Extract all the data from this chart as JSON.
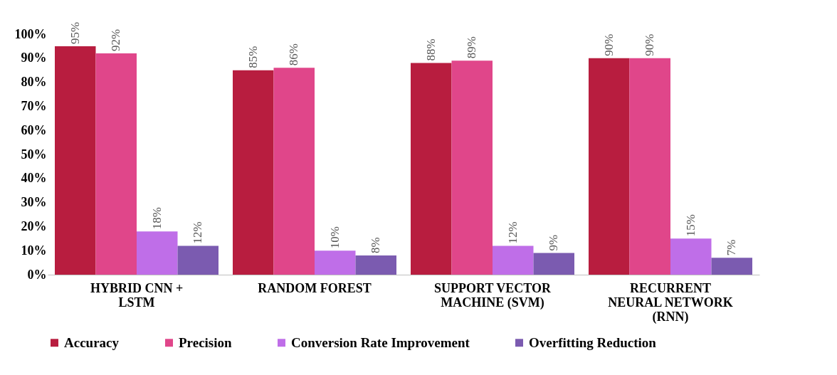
{
  "chart_data": {
    "type": "bar",
    "categories": [
      "HYBRID CNN + LSTM",
      "RANDOM FOREST",
      "SUPPORT VECTOR MACHINE (SVM)",
      "RECURRENT NEURAL NETWORK (RNN)"
    ],
    "series": [
      {
        "name": "Accuracy",
        "color": "#b81d3f",
        "values": [
          95,
          85,
          88,
          90
        ],
        "value_labels": [
          "95%",
          "85%",
          "88%",
          "90%"
        ]
      },
      {
        "name": "Precision",
        "color": "#e0468a",
        "values": [
          92,
          86,
          89,
          90
        ],
        "value_labels": [
          "92%",
          "86%",
          "89%",
          "90%"
        ]
      },
      {
        "name": "Conversion Rate Improvement",
        "color": "#bf6ee8",
        "values": [
          18,
          10,
          12,
          15
        ],
        "value_labels": [
          "18%",
          "10%",
          "12%",
          "15%"
        ]
      },
      {
        "name": "Overfitting Reduction",
        "color": "#7b5bb0",
        "values": [
          12,
          8,
          9,
          7
        ],
        "value_labels": [
          "12%",
          "8%",
          "9%",
          "7%"
        ]
      }
    ],
    "ylim": [
      0,
      100
    ],
    "yticks": [
      {
        "value": 0,
        "label": "0%"
      },
      {
        "value": 10,
        "label": "10%"
      },
      {
        "value": 20,
        "label": "20%"
      },
      {
        "value": 30,
        "label": "30%"
      },
      {
        "value": 40,
        "label": "40%"
      },
      {
        "value": 50,
        "label": "50%"
      },
      {
        "value": 60,
        "label": "60%"
      },
      {
        "value": 70,
        "label": "70%"
      },
      {
        "value": 80,
        "label": "80%"
      },
      {
        "value": 90,
        "label": "90%"
      },
      {
        "value": 100,
        "label": "100%"
      }
    ],
    "grid": false,
    "legend": "bottom"
  }
}
